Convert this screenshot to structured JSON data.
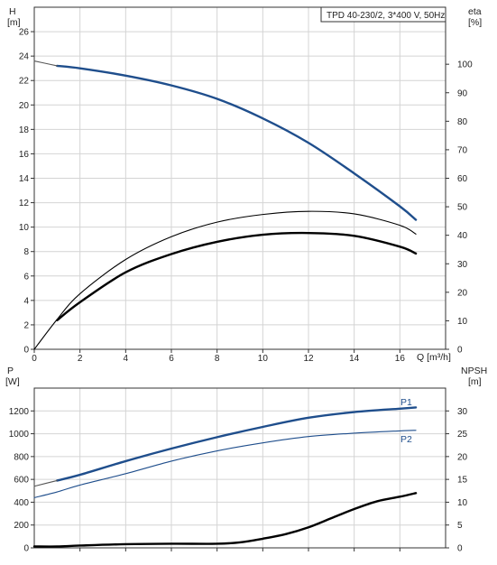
{
  "chart_data": [
    {
      "type": "line",
      "title": "TPD 40-230/2, 3*400 V, 50Hz",
      "x_axis": {
        "label": "Q [m³/h]",
        "range": [
          0,
          18
        ],
        "ticks": [
          0,
          2,
          4,
          6,
          8,
          10,
          12,
          14,
          16
        ]
      },
      "y_left": {
        "label_name": "H",
        "label_unit": "[m]",
        "range": [
          0,
          28
        ],
        "ticks": [
          0,
          2,
          4,
          6,
          8,
          10,
          12,
          14,
          16,
          18,
          20,
          22,
          24,
          26
        ]
      },
      "y_right": {
        "label_name": "eta",
        "label_unit": "[%]",
        "range": [
          0,
          120
        ],
        "ticks": [
          0,
          10,
          20,
          30,
          40,
          50,
          60,
          70,
          80,
          90,
          100
        ]
      },
      "grid": true,
      "series": [
        {
          "role": "H",
          "axis": "left",
          "color": "#1f4e8c",
          "style": "thick",
          "x": [
            1.0,
            2,
            4,
            6,
            8,
            10,
            12,
            14,
            16,
            16.7
          ],
          "y": [
            23.2,
            23.0,
            22.4,
            21.6,
            20.5,
            18.9,
            16.9,
            14.4,
            11.7,
            10.6
          ]
        },
        {
          "role": "H-extension",
          "axis": "left",
          "color": "#555555",
          "style": "thin",
          "x": [
            0,
            0.5,
            1.0
          ],
          "y": [
            23.6,
            23.4,
            23.2
          ]
        },
        {
          "role": "eta-thin",
          "axis": "right",
          "color": "#000000",
          "style": "thin",
          "x": [
            0,
            1,
            2,
            4,
            6,
            8,
            10,
            12,
            14,
            16,
            16.7
          ],
          "y": [
            0,
            10.5,
            19.5,
            31.5,
            39.5,
            44.6,
            47.3,
            48.4,
            47.5,
            43.5,
            40.4
          ]
        },
        {
          "role": "eta-thick",
          "axis": "right",
          "color": "#000000",
          "style": "thick",
          "x": [
            1.0,
            2,
            4,
            6,
            8,
            10,
            12,
            14,
            16,
            16.7
          ],
          "y": [
            10.2,
            16.5,
            27.0,
            33.4,
            37.7,
            40.2,
            40.8,
            39.8,
            36.0,
            33.6
          ]
        }
      ]
    },
    {
      "type": "line",
      "x_axis": {
        "range": [
          0,
          18
        ]
      },
      "y_left": {
        "label_name": "P",
        "label_unit": "[W]",
        "range": [
          0,
          1400
        ],
        "ticks": [
          0,
          200,
          400,
          600,
          800,
          1000,
          1200
        ]
      },
      "y_right": {
        "label_name": "NPSH",
        "label_unit": "[m]",
        "range": [
          0,
          35
        ],
        "ticks": [
          0,
          5,
          10,
          15,
          20,
          25,
          30
        ]
      },
      "grid": true,
      "series": [
        {
          "name": "P1",
          "axis": "left",
          "color": "#1f4e8c",
          "style": "thick",
          "x": [
            1.0,
            2,
            4,
            6,
            8,
            10,
            12,
            14,
            16,
            16.7
          ],
          "y": [
            590,
            640,
            760,
            870,
            970,
            1060,
            1140,
            1190,
            1220,
            1230
          ]
        },
        {
          "role": "P1-extension",
          "axis": "left",
          "color": "#555555",
          "style": "thin",
          "x": [
            0,
            1.0
          ],
          "y": [
            540,
            590
          ]
        },
        {
          "name": "P2",
          "axis": "left",
          "color": "#1f4e8c",
          "style": "thin",
          "x": [
            0,
            1,
            2,
            4,
            6,
            8,
            10,
            12,
            14,
            16,
            16.7
          ],
          "y": [
            440,
            490,
            550,
            650,
            760,
            850,
            920,
            975,
            1005,
            1025,
            1030
          ]
        },
        {
          "role": "NPSH",
          "axis": "right",
          "color": "#000000",
          "style": "thick",
          "x": [
            0,
            1,
            2,
            4,
            6,
            8,
            9,
            10,
            11,
            12,
            13,
            14,
            15,
            16,
            16.7
          ],
          "y": [
            0.3,
            0.3,
            0.5,
            0.8,
            0.9,
            0.9,
            1.2,
            2.0,
            3.0,
            4.5,
            6.5,
            8.5,
            10.2,
            11.2,
            12.0
          ]
        }
      ]
    }
  ],
  "labels": {
    "p1": "P1",
    "p2": "P2"
  }
}
